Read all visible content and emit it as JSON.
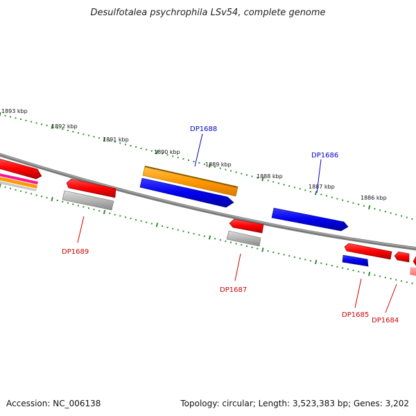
{
  "title": "Desulfotalea psychrophila LSv54, complete genome",
  "footer": {
    "accession": "Accession: NC_006138",
    "summary": "Topology: circular; Length: 3,523,383 bp; Genes: 3,202"
  },
  "ticks": [
    {
      "label": "1893 kbp"
    },
    {
      "label": "1892 kbp"
    },
    {
      "label": "1891 kbp"
    },
    {
      "label": "1890 kbp"
    },
    {
      "label": "1889 kbp"
    },
    {
      "label": "1888 kbp"
    },
    {
      "label": "1887 kbp"
    },
    {
      "label": "1886 kbp"
    }
  ],
  "genes": [
    {
      "label": "DP1689",
      "color": "#cc0000"
    },
    {
      "label": "DP1688",
      "color": "#0000cc"
    },
    {
      "label": "DP1687",
      "color": "#cc0000"
    },
    {
      "label": "DP1686",
      "color": "#0000cc"
    },
    {
      "label": "DP1685",
      "color": "#cc0000"
    },
    {
      "label": "DP1684",
      "color": "#cc0000"
    }
  ],
  "colors": {
    "backbone": "#808080",
    "tick": "#2e8b2e",
    "forward_gene": "#ff0000",
    "reverse_gene": "#0000ee",
    "rna": "#ff9900",
    "pseudo": "#b4b4b4"
  }
}
